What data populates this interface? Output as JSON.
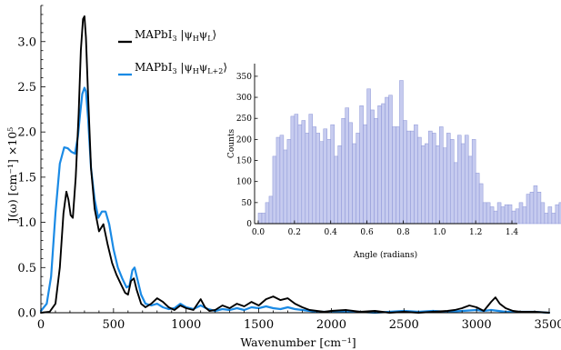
{
  "chart_data": [
    {
      "id": "main",
      "type": "line",
      "xlabel": "Wavenumber [cm⁻¹]",
      "ylabel": "J(ω) [cm⁻¹] ×10⁵",
      "xlim": [
        0,
        3500
      ],
      "ylim": [
        0,
        3.4
      ],
      "xticks": [
        0,
        500,
        1000,
        1500,
        2000,
        2500,
        3000,
        3500
      ],
      "xtick_labels": [
        "0",
        "500",
        "1000",
        "1500",
        "2000",
        "2500",
        "3000",
        "3500"
      ],
      "yticks": [
        0.0,
        0.5,
        1.0,
        1.5,
        2.0,
        2.5,
        3.0
      ],
      "ytick_labels": [
        "0.0",
        "0.5",
        "1.0",
        "1.5",
        "2.0",
        "2.5",
        "3.0"
      ],
      "grid": false,
      "legend": "top-center",
      "series": [
        {
          "name": "MAPbI3 |ψHψL⟩",
          "legend_main": "MAPbI",
          "legend_sub1": "3",
          "legend_ket": " |ψ",
          "legend_sub2": "H",
          "legend_mid": "ψ",
          "legend_sub3": "L",
          "legend_end": "⟩",
          "color": "#000000",
          "x": [
            0,
            60,
            100,
            130,
            155,
            175,
            190,
            205,
            220,
            240,
            260,
            275,
            290,
            300,
            310,
            325,
            345,
            370,
            400,
            430,
            460,
            490,
            520,
            550,
            580,
            600,
            620,
            640,
            660,
            690,
            720,
            760,
            800,
            840,
            880,
            920,
            960,
            1000,
            1050,
            1100,
            1130,
            1160,
            1200,
            1250,
            1300,
            1350,
            1400,
            1450,
            1500,
            1550,
            1600,
            1650,
            1700,
            1750,
            1800,
            1850,
            1900,
            1950,
            2000,
            2100,
            2200,
            2300,
            2400,
            2500,
            2600,
            2700,
            2800,
            2850,
            2900,
            2950,
            3000,
            3050,
            3100,
            3130,
            3160,
            3200,
            3250,
            3300,
            3400,
            3500
          ],
          "y": [
            0.0,
            0.01,
            0.1,
            0.5,
            1.1,
            1.34,
            1.25,
            1.08,
            1.05,
            1.5,
            2.2,
            2.9,
            3.25,
            3.28,
            3.05,
            2.4,
            1.6,
            1.15,
            0.9,
            0.98,
            0.75,
            0.55,
            0.42,
            0.32,
            0.22,
            0.2,
            0.35,
            0.38,
            0.25,
            0.1,
            0.06,
            0.1,
            0.16,
            0.12,
            0.06,
            0.03,
            0.08,
            0.05,
            0.03,
            0.15,
            0.06,
            0.02,
            0.03,
            0.08,
            0.05,
            0.1,
            0.07,
            0.12,
            0.08,
            0.15,
            0.18,
            0.14,
            0.16,
            0.1,
            0.06,
            0.03,
            0.02,
            0.01,
            0.02,
            0.03,
            0.01,
            0.02,
            0.0,
            0.01,
            0.0,
            0.01,
            0.02,
            0.03,
            0.05,
            0.08,
            0.06,
            0.02,
            0.12,
            0.17,
            0.1,
            0.05,
            0.02,
            0.01,
            0.01,
            0.0
          ]
        },
        {
          "name": "MAPbI3 |ψHψL+2⟩",
          "legend_main": "MAPbI",
          "legend_sub1": "3",
          "legend_ket": " |ψ",
          "legend_sub2": "H",
          "legend_mid": "ψ",
          "legend_sub3": "L+2",
          "legend_end": "⟩",
          "color": "#1a8ae5",
          "x": [
            0,
            40,
            70,
            100,
            130,
            160,
            185,
            210,
            235,
            255,
            270,
            285,
            300,
            310,
            325,
            345,
            370,
            395,
            420,
            445,
            470,
            500,
            530,
            560,
            590,
            610,
            630,
            645,
            660,
            690,
            720,
            760,
            800,
            840,
            880,
            920,
            960,
            1000,
            1050,
            1100,
            1150,
            1200,
            1250,
            1300,
            1350,
            1400,
            1450,
            1500,
            1550,
            1600,
            1650,
            1700,
            1750,
            1800,
            1850,
            1900,
            2000,
            2100,
            2200,
            2300,
            2400,
            2500,
            2600,
            2700,
            2800,
            2900,
            3000,
            3050,
            3100,
            3150,
            3200,
            3300,
            3400,
            3500
          ],
          "y": [
            0.02,
            0.1,
            0.4,
            1.1,
            1.65,
            1.83,
            1.82,
            1.78,
            1.76,
            1.95,
            2.2,
            2.42,
            2.49,
            2.45,
            2.15,
            1.6,
            1.25,
            1.05,
            1.12,
            1.12,
            0.98,
            0.7,
            0.5,
            0.38,
            0.28,
            0.3,
            0.47,
            0.5,
            0.4,
            0.2,
            0.1,
            0.08,
            0.1,
            0.06,
            0.04,
            0.05,
            0.1,
            0.06,
            0.04,
            0.08,
            0.04,
            0.02,
            0.04,
            0.03,
            0.05,
            0.03,
            0.06,
            0.05,
            0.07,
            0.05,
            0.04,
            0.06,
            0.04,
            0.03,
            0.02,
            0.01,
            0.01,
            0.01,
            0.01,
            0.0,
            0.01,
            0.02,
            0.01,
            0.02,
            0.01,
            0.02,
            0.03,
            0.02,
            0.03,
            0.02,
            0.01,
            0.01,
            0.01,
            0.0
          ]
        }
      ]
    },
    {
      "id": "inset",
      "type": "bar",
      "xlabel": "Angle (radians)",
      "ylabel": "Counts",
      "xlim": [
        -0.02,
        1.43
      ],
      "ylim": [
        0,
        380
      ],
      "xticks": [
        0.0,
        0.2,
        0.4,
        0.6,
        0.8,
        1.0,
        1.2,
        1.4
      ],
      "xtick_labels": [
        "0.0",
        "0.2",
        "0.4",
        "0.6",
        "0.8",
        "1.0",
        "1.2",
        "1.4"
      ],
      "yticks": [
        0,
        50,
        100,
        150,
        200,
        250,
        300,
        350
      ],
      "ytick_labels": [
        "0",
        "50",
        "100",
        "150",
        "200",
        "250",
        "300",
        "350"
      ],
      "bin_start": 0.0,
      "bin_width": 0.02,
      "bar_color": "#c6cbef",
      "bar_edge": "#8c95d6",
      "values": [
        25,
        25,
        50,
        65,
        160,
        205,
        210,
        175,
        200,
        255,
        260,
        235,
        245,
        215,
        260,
        230,
        215,
        195,
        225,
        200,
        235,
        160,
        185,
        250,
        275,
        240,
        190,
        215,
        280,
        235,
        320,
        270,
        250,
        280,
        285,
        300,
        305,
        230,
        230,
        340,
        245,
        220,
        220,
        235,
        205,
        185,
        190,
        220,
        215,
        185,
        230,
        180,
        215,
        200,
        145,
        210,
        190,
        210,
        160,
        200,
        120,
        95,
        50,
        50,
        40,
        30,
        50,
        40,
        45,
        45,
        30,
        35,
        50,
        40,
        70,
        75,
        90,
        75,
        50,
        25,
        40,
        25,
        45,
        50,
        75,
        35,
        35,
        10
      ]
    }
  ]
}
